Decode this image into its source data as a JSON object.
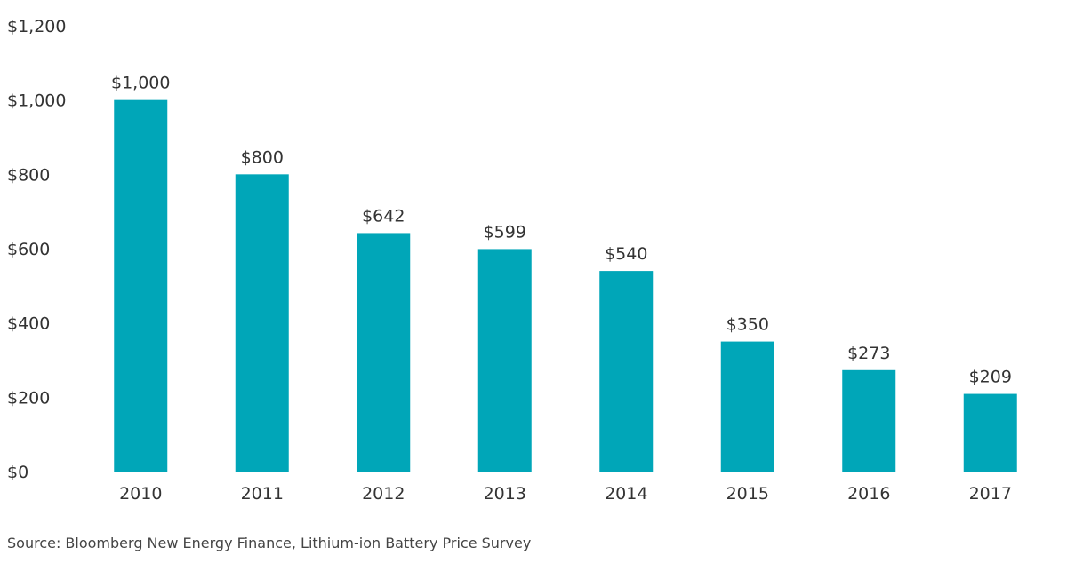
{
  "chart_data": {
    "type": "bar",
    "categories": [
      "2010",
      "2011",
      "2012",
      "2013",
      "2014",
      "2015",
      "2016",
      "2017"
    ],
    "values": [
      1000,
      800,
      642,
      599,
      540,
      350,
      273,
      209
    ],
    "data_labels": [
      "$1,000",
      "$800",
      "$642",
      "$599",
      "$540",
      "$350",
      "$273",
      "$209"
    ],
    "yticks": [
      0,
      200,
      400,
      600,
      800,
      1000,
      1200
    ],
    "ytick_labels": [
      "$0",
      "$200",
      "$400",
      "$600",
      "$800",
      "$1,000",
      "$1,200"
    ],
    "ylim": [
      0,
      1200
    ],
    "grid": false,
    "bar_color": "#00a6b8",
    "axis_color": "#8c8c8c"
  },
  "source": "Source: Bloomberg New Energy Finance, Lithium-ion Battery Price Survey"
}
